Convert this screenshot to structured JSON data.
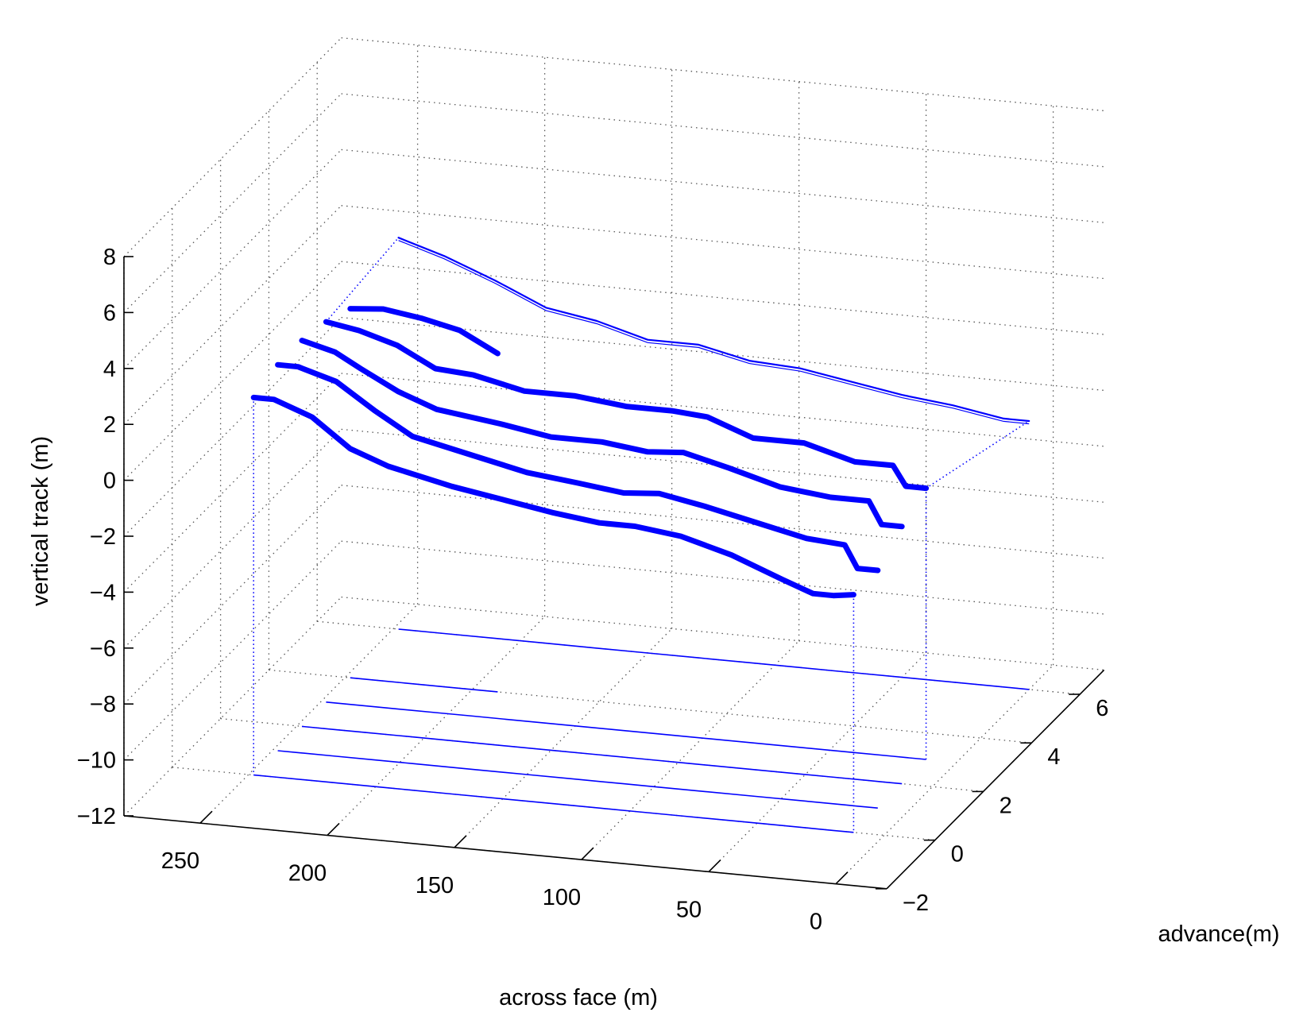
{
  "chart_data": {
    "type": "line",
    "view": "3d",
    "title": "",
    "xlabel": "across face (m)",
    "ylabel": "advance(m)",
    "zlabel": "vertical track (m)",
    "x_ticks": [
      "250",
      "200",
      "150",
      "100",
      "50",
      "0"
    ],
    "y_ticks": [
      "−2",
      "0",
      "2",
      "4",
      "6"
    ],
    "z_ticks": [
      "8",
      "6",
      "4",
      "2",
      "0",
      "−2",
      "−4",
      "−6",
      "−8",
      "−10",
      "−12"
    ],
    "xlim": [
      -20,
      280
    ],
    "ylim": [
      -2,
      7
    ],
    "zlim": [
      -12,
      8
    ],
    "grid": true,
    "line_color": "#0000ff",
    "series": [
      {
        "x": [
          248,
          240,
          225,
          210,
          195,
          170,
          150,
          130,
          112,
          98,
          80,
          60,
          40,
          28,
          20,
          12
        ],
        "y": [
          0,
          0,
          0,
          0,
          0,
          0,
          0,
          0,
          0,
          0,
          0,
          0,
          0,
          0,
          0,
          0
        ],
        "z": [
          1.5,
          1.5,
          1.0,
          0.0,
          -0.5,
          -1.0,
          -1.3,
          -1.6,
          -1.8,
          -1.8,
          -2.0,
          -2.5,
          -3.2,
          -3.6,
          -3.6,
          -3.5
        ]
      },
      {
        "x": [
          248,
          240,
          225,
          210,
          195,
          170,
          150,
          130,
          112,
          98,
          80,
          60,
          40,
          25,
          20,
          12
        ],
        "y": [
          1,
          1,
          1,
          1,
          1,
          1,
          1,
          1,
          1,
          1,
          1,
          1,
          1,
          1,
          1,
          1
        ],
        "z": [
          1.8,
          1.8,
          1.4,
          0.5,
          -0.3,
          -0.8,
          -1.2,
          -1.4,
          -1.6,
          -1.5,
          -1.8,
          -2.2,
          -2.6,
          -2.7,
          -3.5,
          -3.5
        ]
      },
      {
        "x": [
          248,
          235,
          225,
          210,
          195,
          170,
          150,
          130,
          112,
          98,
          80,
          60,
          40,
          25,
          20,
          12
        ],
        "y": [
          2,
          2,
          2,
          2,
          2,
          2,
          2,
          2,
          2,
          2,
          2,
          2,
          2,
          2,
          2,
          2
        ],
        "z": [
          1.8,
          1.5,
          1.0,
          0.3,
          -0.2,
          -0.5,
          -0.8,
          -0.8,
          -1.0,
          -0.9,
          -1.3,
          -1.8,
          -2.0,
          -2.0,
          -2.8,
          -2.8
        ]
      },
      {
        "x": [
          248,
          235,
          220,
          205,
          190,
          170,
          150,
          130,
          112,
          98,
          80,
          60,
          40,
          25,
          20,
          12
        ],
        "y": [
          3,
          3,
          3,
          3,
          3,
          3,
          3,
          3,
          3,
          3,
          3,
          3,
          3,
          3,
          3,
          3
        ],
        "z": [
          1.6,
          1.4,
          1.0,
          0.3,
          0.2,
          -0.2,
          -0.2,
          -0.4,
          -0.4,
          -0.5,
          -1.1,
          -1.1,
          -1.6,
          -1.6,
          -2.3,
          -2.3
        ]
      },
      {
        "x": [
          248,
          235,
          220,
          205,
          190
        ],
        "y": [
          4,
          4,
          4,
          4,
          4
        ],
        "z": [
          1.2,
          1.3,
          1.1,
          0.8,
          0.1
        ]
      },
      {
        "x": [
          248,
          230,
          210,
          190,
          170,
          150,
          130,
          110,
          90,
          70,
          50,
          30,
          10,
          0
        ],
        "y": [
          6,
          6,
          6,
          6,
          6,
          6,
          6,
          6,
          6,
          6,
          6,
          6,
          6,
          6
        ],
        "z": [
          2.0,
          1.5,
          0.8,
          0.0,
          -0.3,
          -0.8,
          -0.8,
          -1.2,
          -1.3,
          -1.6,
          -1.9,
          -2.1,
          -2.4,
          -2.4
        ]
      }
    ]
  }
}
